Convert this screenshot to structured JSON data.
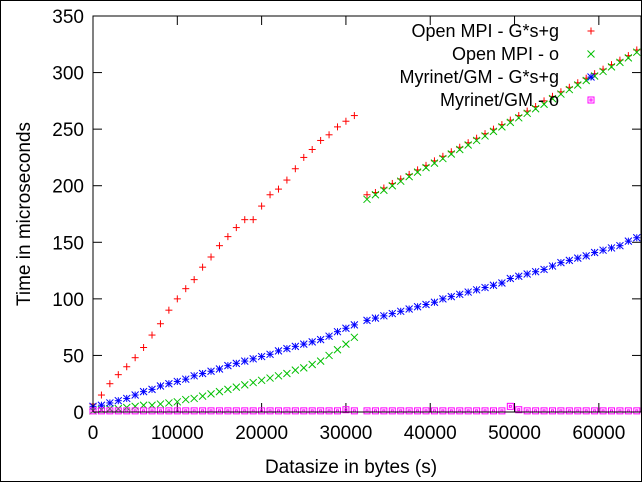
{
  "chart_data": {
    "type": "scatter",
    "title": "",
    "xlabel": "Datasize in bytes (s)",
    "ylabel": "Time in microseconds",
    "xlim": [
      0,
      65000
    ],
    "ylim": [
      0,
      350
    ],
    "x_ticks": [
      0,
      10000,
      20000,
      30000,
      40000,
      50000,
      60000
    ],
    "y_ticks": [
      0,
      50,
      100,
      150,
      200,
      250,
      300,
      350
    ],
    "grid": false,
    "legend_position": "top-right",
    "series": [
      {
        "name": "Open MPI - G*s+g",
        "color": "#ff0000",
        "marker": "plus",
        "x": [
          0,
          1000,
          2000,
          3000,
          4000,
          5000,
          6000,
          7000,
          8000,
          9000,
          10000,
          11000,
          12000,
          13000,
          14000,
          15000,
          16000,
          17000,
          18000,
          19000,
          20000,
          21000,
          22000,
          23000,
          24000,
          25000,
          26000,
          27000,
          28000,
          29000,
          30000,
          31000,
          32500,
          33500,
          34500,
          35500,
          36500,
          37500,
          38500,
          39500,
          40500,
          41500,
          42500,
          43500,
          44500,
          45500,
          46500,
          47500,
          48500,
          49500,
          50500,
          51500,
          52500,
          53500,
          54500,
          55500,
          56500,
          57500,
          58500,
          59500,
          60500,
          61500,
          62500,
          63500,
          64500
        ],
        "y": [
          7,
          15,
          25,
          33,
          40,
          48,
          57,
          68,
          78,
          90,
          100,
          109,
          117,
          128,
          137,
          147,
          155,
          163,
          170,
          170,
          182,
          192,
          197,
          205,
          215,
          225,
          232,
          240,
          245,
          252,
          257,
          262,
          192,
          194,
          198,
          202,
          206,
          210,
          214,
          218,
          222,
          226,
          230,
          234,
          238,
          242,
          246,
          250,
          254,
          258,
          262,
          266,
          270,
          275,
          279,
          283,
          287,
          291,
          295,
          299,
          303,
          307,
          311,
          315,
          320
        ]
      },
      {
        "name": "Open MPI - o",
        "color": "#00c000",
        "marker": "cross",
        "x": [
          0,
          1000,
          2000,
          3000,
          4000,
          5000,
          6000,
          7000,
          8000,
          9000,
          10000,
          11000,
          12000,
          13000,
          14000,
          15000,
          16000,
          17000,
          18000,
          19000,
          20000,
          21000,
          22000,
          23000,
          24000,
          25000,
          26000,
          27000,
          28000,
          29000,
          30000,
          31000,
          32500,
          33500,
          34500,
          35500,
          36500,
          37500,
          38500,
          39500,
          40500,
          41500,
          42500,
          43500,
          44500,
          45500,
          46500,
          47500,
          48500,
          49500,
          50500,
          51500,
          52500,
          53500,
          54500,
          55500,
          56500,
          57500,
          58500,
          59500,
          60500,
          61500,
          62500,
          63500,
          64500
        ],
        "y": [
          1,
          2,
          3,
          3,
          4,
          5,
          6,
          6,
          7,
          8,
          9,
          11,
          12,
          14,
          16,
          18,
          20,
          22,
          24,
          26,
          28,
          30,
          32,
          34,
          37,
          39,
          42,
          45,
          50,
          55,
          60,
          66,
          188,
          192,
          196,
          200,
          204,
          208,
          212,
          216,
          220,
          224,
          228,
          232,
          236,
          240,
          244,
          248,
          252,
          256,
          260,
          264,
          268,
          272,
          277,
          281,
          285,
          289,
          293,
          297,
          301,
          305,
          309,
          313,
          318
        ]
      },
      {
        "name": "Myrinet/GM - G*s+g",
        "color": "#0000ff",
        "marker": "star",
        "x": [
          0,
          1000,
          2000,
          3000,
          4000,
          5000,
          6000,
          7000,
          8000,
          9000,
          10000,
          11000,
          12000,
          13000,
          14000,
          15000,
          16000,
          17000,
          18000,
          19000,
          20000,
          21000,
          22000,
          23000,
          24000,
          25000,
          26000,
          27000,
          28000,
          29000,
          30000,
          31000,
          32500,
          33500,
          34500,
          35500,
          36500,
          37500,
          38500,
          39500,
          40500,
          41500,
          42500,
          43500,
          44500,
          45500,
          46500,
          47500,
          48500,
          49500,
          50500,
          51500,
          52500,
          53500,
          54500,
          55500,
          56500,
          57500,
          58500,
          59500,
          60500,
          61500,
          62500,
          63500,
          64500
        ],
        "y": [
          5,
          6,
          8,
          10,
          12,
          15,
          18,
          20,
          23,
          25,
          27,
          29,
          32,
          34,
          36,
          38,
          41,
          43,
          45,
          47,
          49,
          51,
          54,
          56,
          58,
          60,
          62,
          64,
          67,
          71,
          74,
          77,
          81,
          83,
          85,
          87,
          89,
          91,
          93,
          95,
          97,
          100,
          102,
          104,
          106,
          108,
          110,
          112,
          114,
          118,
          120,
          122,
          124,
          126,
          129,
          132,
          134,
          136,
          138,
          141,
          143,
          145,
          147,
          151,
          154
        ]
      },
      {
        "name": "Myrinet/GM - o",
        "color": "#ff00ff",
        "marker": "square",
        "x": [
          0,
          1000,
          2000,
          3000,
          4000,
          5000,
          6000,
          7000,
          8000,
          9000,
          10000,
          11000,
          12000,
          13000,
          14000,
          15000,
          16000,
          17000,
          18000,
          19000,
          20000,
          21000,
          22000,
          23000,
          24000,
          25000,
          26000,
          27000,
          28000,
          29000,
          30000,
          31000,
          32500,
          33500,
          34500,
          35500,
          36500,
          37500,
          38500,
          39500,
          40500,
          41500,
          42500,
          43500,
          44500,
          45500,
          46500,
          47500,
          48500,
          49500,
          50500,
          51500,
          52500,
          53500,
          54500,
          55500,
          56500,
          57500,
          58500,
          59500,
          60500,
          61500,
          62500,
          63500,
          64500
        ],
        "y": [
          1,
          1,
          1,
          1,
          1,
          1,
          1,
          1,
          1,
          1,
          1,
          1,
          1,
          1,
          1,
          1,
          1,
          1,
          1,
          1,
          1,
          1,
          1,
          1,
          1,
          1,
          1,
          1,
          1,
          1,
          2,
          1,
          1,
          1,
          1,
          1,
          1,
          1,
          1,
          1,
          1,
          1,
          1,
          1,
          1,
          1,
          1,
          1,
          1,
          5,
          2,
          1,
          1,
          1,
          1,
          1,
          1,
          1,
          1,
          1,
          1,
          1,
          1,
          1,
          1
        ]
      }
    ]
  }
}
